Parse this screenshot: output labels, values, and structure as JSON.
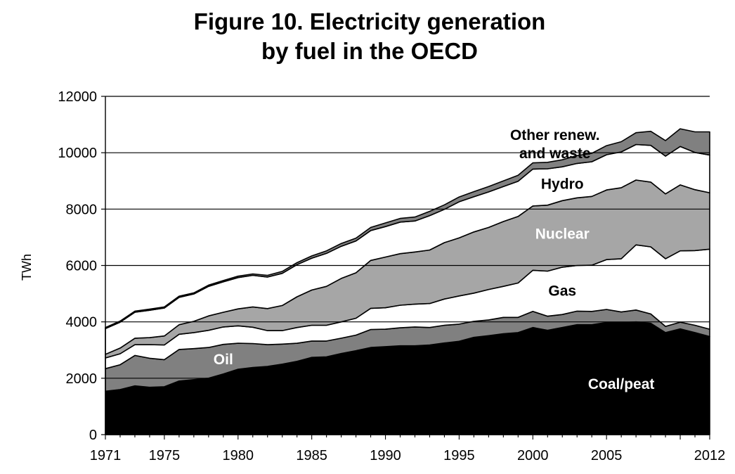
{
  "chart_data": {
    "type": "area",
    "stacked": true,
    "title": "Figure 10. Electricity generation",
    "subtitle": "by fuel in the OECD",
    "xlabel": "",
    "ylabel": "TWh",
    "xlim": [
      1971,
      2012
    ],
    "ylim": [
      0,
      12000
    ],
    "y_ticks": [
      0,
      2000,
      4000,
      6000,
      8000,
      10000,
      12000
    ],
    "x_tick_labels": [
      "1971",
      "1975",
      "1980",
      "1985",
      "1990",
      "1995",
      "2000",
      "2005",
      "2012"
    ],
    "grid": "horizontal",
    "legend": "none (labels drawn inside areas)",
    "x": [
      1971,
      1972,
      1973,
      1974,
      1975,
      1976,
      1977,
      1978,
      1979,
      1980,
      1981,
      1982,
      1983,
      1984,
      1985,
      1986,
      1987,
      1988,
      1989,
      1990,
      1991,
      1992,
      1993,
      1994,
      1995,
      1996,
      1997,
      1998,
      1999,
      2000,
      2001,
      2002,
      2003,
      2004,
      2005,
      2006,
      2007,
      2008,
      2009,
      2010,
      2011,
      2012
    ],
    "series": [
      {
        "name": "Coal/peat",
        "color": "#000000",
        "label_color": "#ffffff",
        "values": [
          1540,
          1600,
          1730,
          1680,
          1700,
          1900,
          1950,
          2000,
          2150,
          2320,
          2380,
          2420,
          2500,
          2600,
          2740,
          2760,
          2880,
          2980,
          3090,
          3120,
          3150,
          3150,
          3180,
          3250,
          3310,
          3450,
          3510,
          3580,
          3620,
          3800,
          3700,
          3800,
          3900,
          3900,
          3980,
          3970,
          4000,
          3950,
          3620,
          3750,
          3620,
          3480
        ]
      },
      {
        "name": "Oil",
        "color": "#808080",
        "label_color": "#ffffff",
        "values": [
          800,
          880,
          1080,
          1030,
          960,
          1120,
          1100,
          1090,
          1050,
          920,
          850,
          770,
          710,
          640,
          580,
          560,
          540,
          550,
          640,
          620,
          640,
          670,
          620,
          630,
          610,
          570,
          560,
          580,
          540,
          570,
          500,
          460,
          480,
          470,
          460,
          380,
          420,
          330,
          220,
          240,
          260,
          260
        ]
      },
      {
        "name": "Gas",
        "color": "#ffffff",
        "label_color": "#000000",
        "values": [
          380,
          390,
          380,
          480,
          520,
          540,
          570,
          610,
          620,
          620,
          580,
          500,
          480,
          560,
          560,
          560,
          580,
          600,
          750,
          760,
          800,
          810,
          850,
          930,
          1000,
          1000,
          1080,
          1100,
          1220,
          1460,
          1600,
          1680,
          1620,
          1640,
          1770,
          1890,
          2310,
          2380,
          2400,
          2530,
          2650,
          2840
        ]
      },
      {
        "name": "Nuclear",
        "color": "#a6a6a6",
        "label_color": "#ffffff",
        "values": [
          130,
          200,
          230,
          250,
          320,
          340,
          400,
          510,
          520,
          600,
          720,
          780,
          890,
          1090,
          1250,
          1380,
          1540,
          1610,
          1700,
          1800,
          1830,
          1850,
          1900,
          2000,
          2060,
          2170,
          2200,
          2300,
          2360,
          2280,
          2340,
          2360,
          2400,
          2440,
          2470,
          2520,
          2300,
          2300,
          2300,
          2340,
          2160,
          2000
        ]
      },
      {
        "name": "Hydro",
        "color": "#ffffff",
        "label_color": "#000000",
        "values": [
          910,
          920,
          920,
          970,
          990,
          970,
          970,
          1050,
          1080,
          1110,
          1120,
          1120,
          1140,
          1140,
          1130,
          1170,
          1140,
          1130,
          1060,
          1080,
          1120,
          1100,
          1220,
          1180,
          1280,
          1250,
          1260,
          1240,
          1250,
          1310,
          1290,
          1200,
          1220,
          1230,
          1250,
          1270,
          1260,
          1300,
          1340,
          1360,
          1320,
          1340
        ]
      },
      {
        "name": "Other renew.\nand waste",
        "color": "#808080",
        "label_color": "#000000",
        "values": [
          40,
          40,
          40,
          40,
          40,
          40,
          40,
          45,
          45,
          50,
          50,
          60,
          70,
          70,
          80,
          90,
          100,
          100,
          110,
          130,
          130,
          140,
          150,
          160,
          170,
          180,
          190,
          200,
          210,
          220,
          230,
          250,
          280,
          300,
          320,
          360,
          420,
          500,
          550,
          630,
          730,
          820
        ]
      }
    ]
  }
}
